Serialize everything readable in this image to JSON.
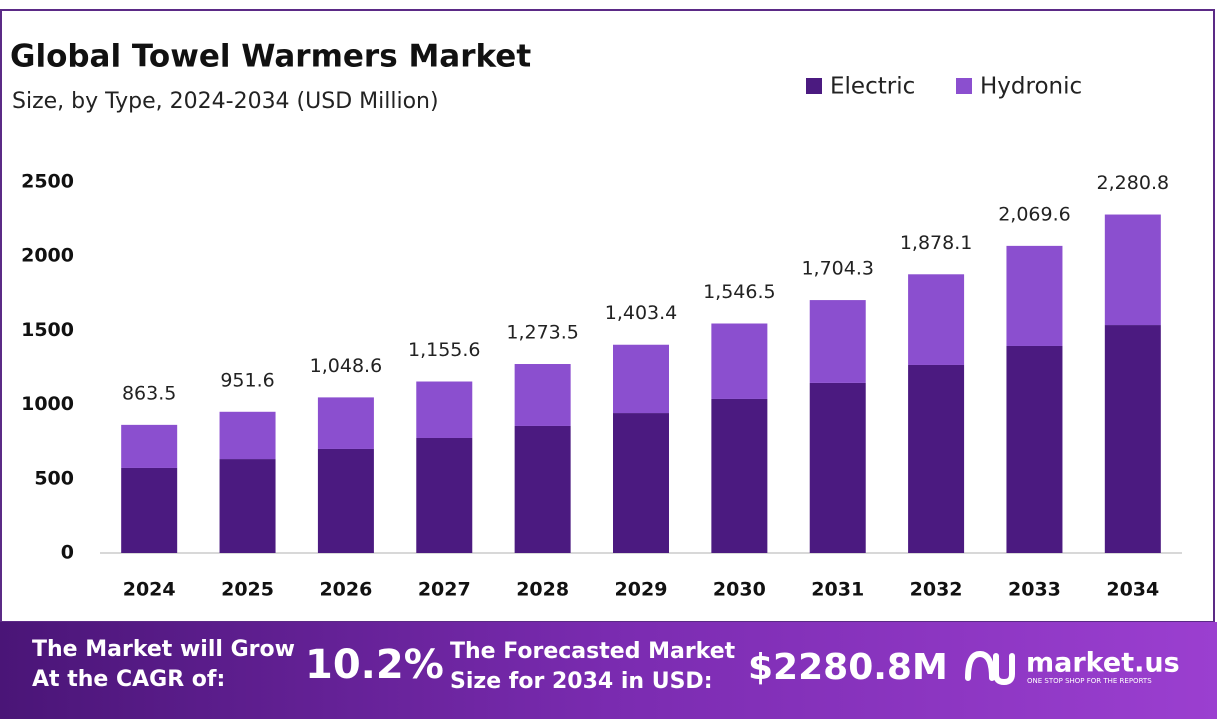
{
  "chart_data": {
    "type": "stacked_bar",
    "title": "Global Towel Warmers Market",
    "subtitle": "Size, by Type, 2024-2034 (USD Million)",
    "categories": [
      "2024",
      "2025",
      "2026",
      "2027",
      "2028",
      "2029",
      "2030",
      "2031",
      "2032",
      "2033",
      "2034"
    ],
    "series": [
      {
        "name": "Electric",
        "color": "#4b1a80",
        "values": [
          573,
          633,
          701,
          775,
          856,
          943,
          1038,
          1146,
          1267,
          1395,
          1536
        ]
      },
      {
        "name": "Hydronic",
        "color": "#8b4fcf",
        "values": [
          290.5,
          318.6,
          347.6,
          380.6,
          417.5,
          460.4,
          508.5,
          558.3,
          611.1,
          674.6,
          744.8
        ]
      }
    ],
    "totals": [
      863.5,
      951.6,
      1048.6,
      1155.6,
      1273.5,
      1403.4,
      1546.5,
      1704.3,
      1878.1,
      2069.6,
      2280.8
    ],
    "total_labels": [
      "863.5",
      "951.6",
      "1,048.6",
      "1,155.6",
      "1,273.5",
      "1,403.4",
      "1,546.5",
      "1,704.3",
      "1,878.1",
      "2,069.6",
      "2,280.8"
    ],
    "ylim": [
      0,
      2500
    ],
    "yticks": [
      0,
      500,
      1000,
      1500,
      2000,
      2500
    ],
    "grid": false,
    "legend": "top-right"
  },
  "footer": {
    "cagr_text": [
      "The Market will Grow",
      "At the CAGR of:"
    ],
    "cagr": "10.2%",
    "forecast_text": [
      "The Forecasted Market",
      "Size for 2034 in USD:"
    ],
    "forecast": "$2280.8M",
    "brand": "market.us",
    "tagline": "ONE STOP SHOP FOR THE REPORTS"
  }
}
